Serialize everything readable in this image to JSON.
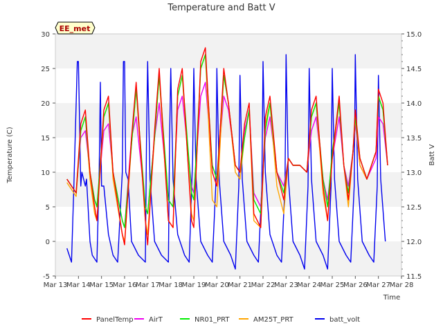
{
  "chart_data": {
    "type": "line",
    "title": "Temperature and Batt V",
    "site_label": "EE_met",
    "xlabel": "Time",
    "ylabel": "Temperature (C)",
    "y2label": "Batt V",
    "xlim": [
      13,
      28
    ],
    "ylim": [
      -5,
      30
    ],
    "y2lim": [
      11.5,
      15.0
    ],
    "x_ticks": [
      13,
      14,
      15,
      16,
      17,
      18,
      19,
      20,
      21,
      22,
      23,
      24,
      25,
      26,
      27,
      28
    ],
    "x_tick_labels": [
      "Mar 13",
      "Mar 14",
      "Mar 15",
      "Mar 16",
      "Mar 17",
      "Mar 18",
      "Mar 19",
      "Mar 20",
      "Mar 21",
      "Mar 22",
      "Mar 23",
      "Mar 24",
      "Mar 25",
      "Mar 26",
      "Mar 27",
      "Mar 28"
    ],
    "y_ticks": [
      -5,
      0,
      5,
      10,
      15,
      20,
      25,
      30
    ],
    "y_tick_labels": [
      "-5",
      "0",
      "5",
      "10",
      "15",
      "20",
      "25",
      "30"
    ],
    "y2_ticks": [
      11.5,
      12.0,
      12.5,
      13.0,
      13.5,
      14.0,
      14.5,
      15.0
    ],
    "y2_tick_labels": [
      "11.5",
      "12.0",
      "12.5",
      "13.0",
      "13.5",
      "14.0",
      "14.5",
      "15.0"
    ],
    "bands": [
      [
        -5,
        0
      ],
      [
        5,
        10
      ],
      [
        15,
        20
      ],
      [
        25,
        30
      ]
    ],
    "series": [
      {
        "name": "PanelTemp",
        "color": "#ff0000",
        "axis": "left",
        "x": [
          13.5,
          13.9,
          14.1,
          14.3,
          14.5,
          14.7,
          14.8,
          15.1,
          15.3,
          15.5,
          15.9,
          16.0,
          16.3,
          16.5,
          16.9,
          17.0,
          17.3,
          17.5,
          17.9,
          18.1,
          18.3,
          18.5,
          18.9,
          19.0,
          19.3,
          19.5,
          19.8,
          20.0,
          20.3,
          20.5,
          20.8,
          21.0,
          21.2,
          21.4,
          21.6,
          21.9,
          22.1,
          22.3,
          22.6,
          22.9,
          23.1,
          23.3,
          23.6,
          23.9,
          24.1,
          24.3,
          24.6,
          24.8,
          25.0,
          25.3,
          25.5,
          25.7,
          25.9,
          26.0,
          26.2,
          26.5,
          26.9,
          27.0,
          27.2,
          27.4
        ],
        "y": [
          9,
          7,
          17,
          19,
          10,
          5,
          3,
          19,
          21,
          10,
          1,
          -0.5,
          15,
          23,
          3,
          -0.5,
          16,
          25,
          3,
          2,
          22,
          25,
          3,
          2,
          26,
          28,
          10,
          8,
          25,
          20,
          11,
          10,
          17,
          20,
          4,
          2,
          18,
          21,
          10,
          6,
          12,
          11,
          11,
          10,
          19,
          21,
          8,
          3,
          12,
          21,
          11,
          6,
          13,
          19,
          12,
          9,
          13,
          22,
          20,
          11
        ]
      },
      {
        "name": "AirT",
        "color": "#ee00ee",
        "axis": "left",
        "x": [
          13.5,
          13.9,
          14.1,
          14.3,
          14.5,
          14.7,
          14.8,
          15.1,
          15.3,
          15.5,
          15.9,
          16.0,
          16.3,
          16.5,
          16.9,
          17.0,
          17.3,
          17.5,
          17.9,
          18.1,
          18.3,
          18.5,
          18.9,
          19.0,
          19.3,
          19.5,
          19.8,
          20.0,
          20.3,
          20.5,
          20.8,
          21.0,
          21.2,
          21.4,
          21.6,
          21.9,
          22.1,
          22.3,
          22.6,
          22.9,
          23.1,
          23.3,
          23.6,
          23.9,
          24.1,
          24.3,
          24.6,
          24.8,
          25.0,
          25.3,
          25.5,
          25.7,
          25.9,
          26.0,
          26.2,
          26.5,
          26.9,
          27.0,
          27.2,
          27.4
        ],
        "y": [
          9,
          7,
          15,
          16,
          10,
          6,
          5,
          16,
          17,
          10,
          3,
          2,
          15,
          18,
          5,
          4,
          15,
          20,
          6,
          5,
          19,
          21,
          8,
          7,
          21,
          23,
          11,
          9,
          21,
          19,
          11,
          10,
          16,
          19,
          7,
          5,
          15,
          18,
          10,
          8,
          12,
          11,
          11,
          10,
          16,
          18,
          9,
          6,
          12,
          18,
          11,
          8,
          13,
          17,
          11,
          9,
          12,
          18,
          17,
          11
        ]
      },
      {
        "name": "NR01_PRT",
        "color": "#00ee00",
        "axis": "left",
        "x": [
          13.5,
          13.9,
          14.1,
          14.3,
          14.5,
          14.7,
          14.8,
          15.1,
          15.3,
          15.5,
          15.9,
          16.0,
          16.3,
          16.5,
          16.9,
          17.0,
          17.3,
          17.5,
          17.9,
          18.1,
          18.3,
          18.5,
          18.9,
          19.0,
          19.3,
          19.5,
          19.8,
          20.0,
          20.3,
          20.5,
          20.8,
          21.0,
          21.2,
          21.4,
          21.6,
          21.9,
          22.1,
          22.3,
          22.6,
          22.9,
          23.1,
          23.3,
          23.6,
          23.9,
          24.1,
          24.3,
          24.6,
          24.8,
          25.0,
          25.3,
          25.5,
          25.7,
          25.9,
          26.0,
          26.2,
          26.5,
          26.9,
          27.0,
          27.2,
          27.4
        ],
        "y": [
          9,
          7,
          16,
          18,
          10,
          6,
          5,
          18,
          20,
          10,
          3,
          2,
          14,
          22,
          5,
          4,
          15,
          24,
          6,
          5,
          21,
          24,
          7,
          6,
          25,
          27,
          11,
          9,
          24,
          20,
          11,
          10,
          15,
          19,
          6,
          4,
          16,
          20,
          10,
          7,
          12,
          11,
          11,
          10,
          18,
          20,
          9,
          5,
          13,
          20,
          11,
          7,
          13,
          18,
          12,
          9,
          13,
          21,
          19,
          11
        ]
      },
      {
        "name": "AM25T_PRT",
        "color": "#ffa500",
        "axis": "left",
        "x": [
          13.5,
          13.9,
          14.1,
          14.3,
          14.5,
          14.7,
          14.8,
          15.1,
          15.3,
          15.5,
          15.9,
          16.0,
          16.3,
          16.5,
          16.9,
          17.0,
          17.3,
          17.5,
          17.9,
          18.1,
          18.3,
          18.5,
          18.9,
          19.0,
          19.3,
          19.5,
          19.8,
          20.0,
          20.3,
          20.5,
          20.8,
          21.0,
          21.2,
          21.4,
          21.6,
          21.9,
          22.1,
          22.3,
          22.6,
          22.9,
          23.1,
          23.3,
          23.6,
          23.9,
          24.1,
          24.3,
          24.6,
          24.8,
          25.0,
          25.3,
          25.5,
          25.7,
          25.9,
          26.0,
          26.2,
          26.5,
          26.9,
          27.0,
          27.2,
          27.4
        ],
        "y": [
          8.5,
          6.5,
          16,
          18,
          9,
          4,
          3,
          18,
          20,
          9,
          1,
          0,
          14,
          22,
          3,
          1,
          15,
          24,
          3,
          2,
          21,
          24,
          4,
          3,
          25,
          27,
          6,
          5,
          24,
          20,
          10,
          9,
          15,
          19,
          3,
          2,
          17,
          20,
          8,
          4,
          12,
          11,
          11,
          10,
          18,
          20,
          7,
          3,
          12,
          20,
          11,
          5,
          13,
          18,
          11,
          9,
          13,
          21,
          19,
          11
        ]
      },
      {
        "name": "batt_volt",
        "color": "#0000ee",
        "axis": "right",
        "x": [
          13.5,
          13.7,
          13.8,
          13.95,
          14.0,
          14.1,
          14.15,
          14.3,
          14.35,
          14.5,
          14.6,
          14.8,
          14.9,
          14.95,
          15.0,
          15.1,
          15.3,
          15.5,
          15.7,
          15.9,
          15.95,
          16.0,
          16.05,
          16.15,
          16.3,
          16.6,
          16.9,
          16.95,
          17.0,
          17.1,
          17.3,
          17.6,
          17.9,
          17.95,
          18.0,
          18.1,
          18.3,
          18.6,
          18.8,
          18.95,
          19.0,
          19.1,
          19.3,
          19.6,
          19.8,
          19.95,
          20.0,
          20.1,
          20.3,
          20.6,
          20.8,
          20.95,
          21.0,
          21.1,
          21.3,
          21.6,
          21.8,
          21.95,
          22.0,
          22.1,
          22.3,
          22.6,
          22.8,
          22.95,
          23.0,
          23.1,
          23.3,
          23.6,
          23.8,
          23.95,
          24.0,
          24.1,
          24.3,
          24.6,
          24.8,
          24.95,
          25.0,
          25.1,
          25.3,
          25.6,
          25.8,
          25.95,
          26.0,
          26.1,
          26.3,
          26.6,
          26.8,
          26.95,
          27.0,
          27.1,
          27.3
        ],
        "y": [
          11.9,
          11.7,
          12.8,
          14.6,
          14.6,
          12.8,
          13.0,
          12.8,
          12.9,
          12.0,
          11.8,
          11.7,
          13.0,
          14.3,
          12.8,
          12.8,
          12.1,
          11.8,
          11.7,
          13.0,
          14.6,
          14.6,
          13.0,
          12.9,
          12.0,
          11.8,
          11.7,
          13.5,
          14.6,
          12.9,
          12.0,
          11.8,
          11.7,
          13.5,
          14.5,
          12.9,
          12.1,
          11.8,
          11.7,
          13.2,
          14.5,
          12.9,
          12.0,
          11.8,
          11.7,
          12.8,
          14.5,
          12.9,
          12.0,
          11.8,
          11.6,
          12.8,
          14.4,
          12.9,
          12.0,
          11.8,
          11.7,
          12.8,
          14.6,
          13.0,
          12.1,
          11.8,
          11.7,
          12.8,
          14.7,
          12.9,
          12.0,
          11.8,
          11.6,
          12.8,
          14.5,
          12.9,
          12.0,
          11.8,
          11.6,
          12.8,
          14.5,
          12.9,
          12.0,
          11.8,
          11.7,
          12.8,
          14.7,
          12.9,
          12.0,
          11.8,
          11.7,
          12.8,
          14.4,
          12.9,
          12.0
        ]
      }
    ]
  }
}
